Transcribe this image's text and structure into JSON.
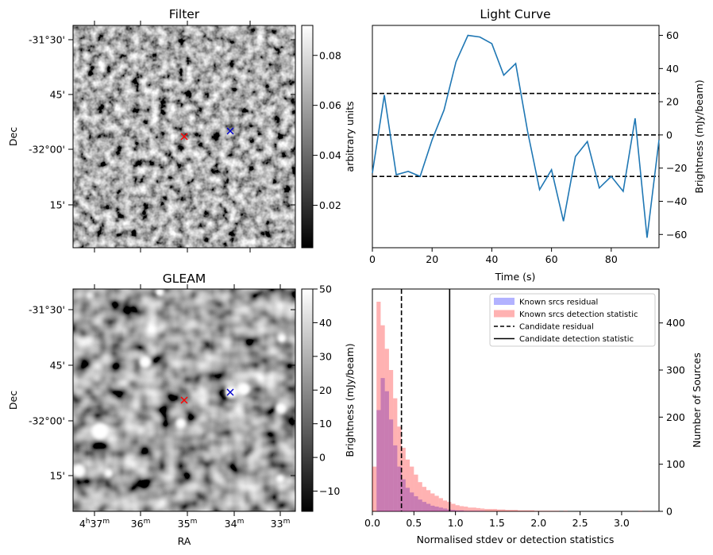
{
  "charts": [
    {
      "type": "heatmap",
      "title": "Filter",
      "ylabel": "Dec",
      "ytick_labels": [
        "-31°30'",
        "45'",
        "-32°00'",
        "15'"
      ],
      "colorbar": {
        "label": "arbitrary units",
        "ticks": [
          "0.08",
          "0.06",
          "0.04",
          "0.02"
        ],
        "range": [
          0.003,
          0.092
        ]
      },
      "markers": [
        {
          "name": "candidate",
          "symbol": "x",
          "color": "#ff0000"
        },
        {
          "name": "other",
          "symbol": "x",
          "color": "#0000cc"
        }
      ]
    },
    {
      "type": "line",
      "title": "Light Curve",
      "xlabel": "Time (s)",
      "ylabel": "Brightness (mJy/beam)",
      "x_ticks": [
        "0",
        "20",
        "40",
        "60",
        "80"
      ],
      "y_ticks": [
        "60",
        "40",
        "20",
        "0",
        "−20",
        "−40",
        "−60"
      ],
      "xlim": [
        0,
        96
      ],
      "ylim": [
        -68,
        66
      ],
      "series_color": "#1f77b4",
      "x": [
        0,
        4,
        8,
        12,
        16,
        20,
        24,
        28,
        32,
        36,
        40,
        44,
        48,
        52,
        56,
        60,
        64,
        68,
        72,
        76,
        80,
        84,
        88,
        92,
        96
      ],
      "y": [
        -23,
        24,
        -24,
        -22,
        -25,
        -3,
        15,
        44,
        60,
        59,
        55,
        36,
        43,
        2,
        -33,
        -21,
        -52,
        -13,
        -4,
        -32,
        -25,
        -34,
        10,
        -62,
        -3
      ],
      "hlines": [
        25,
        0,
        -25
      ]
    },
    {
      "type": "heatmap",
      "title": "GLEAM",
      "ylabel": "Dec",
      "xlabel": "RA",
      "ytick_labels": [
        "-31°30'",
        "45'",
        "-32°00'",
        "15'"
      ],
      "xtick_labels": [
        {
          "h": "4",
          "m": "37"
        },
        {
          "h": "",
          "m": "36"
        },
        {
          "h": "",
          "m": "35"
        },
        {
          "h": "",
          "m": "34"
        },
        {
          "h": "",
          "m": "33"
        }
      ],
      "colorbar": {
        "label": "Brightness (mJy/beam)",
        "ticks": [
          "50",
          "40",
          "30",
          "20",
          "10",
          "0",
          "−10"
        ],
        "range": [
          -16,
          50
        ]
      },
      "markers": [
        {
          "name": "candidate",
          "symbol": "x",
          "color": "#ff0000"
        },
        {
          "name": "other",
          "symbol": "x",
          "color": "#0000cc"
        }
      ]
    },
    {
      "type": "bar",
      "xlabel": "Normalised stdev or detection statistics",
      "ylabel": "Number of Sources",
      "x_ticks": [
        "0.0",
        "0.5",
        "1.0",
        "1.5",
        "2.0",
        "2.5",
        "3.0"
      ],
      "y_ticks": [
        "0",
        "100",
        "200",
        "300",
        "400"
      ],
      "xlim": [
        0,
        3.45
      ],
      "ylim": [
        0,
        472
      ],
      "bin_width": 0.05,
      "legend_position": "top-right",
      "series": [
        {
          "name": "Known srcs residual",
          "color": "#0000ff",
          "alpha": 0.3,
          "counts": [
            0,
            215,
            283,
            255,
            195,
            140,
            95,
            68,
            50,
            40,
            32,
            25,
            20,
            16,
            12,
            10,
            8,
            6,
            4,
            3,
            2,
            2,
            1,
            1,
            1,
            1,
            1,
            0,
            0,
            0,
            0,
            0,
            0,
            0,
            0,
            0,
            0,
            0,
            0,
            0,
            0,
            0,
            0,
            0,
            0,
            0,
            0,
            0,
            0,
            0,
            0,
            0,
            0,
            0,
            0,
            0,
            0,
            0,
            0,
            0,
            0,
            0,
            0,
            0,
            0,
            0,
            0,
            0,
            0
          ]
        },
        {
          "name": "Known srcs detection statistic",
          "color": "#ff0000",
          "alpha": 0.3,
          "counts": [
            95,
            445,
            395,
            345,
            300,
            240,
            180,
            135,
            110,
            95,
            78,
            62,
            52,
            45,
            38,
            33,
            28,
            23,
            20,
            16,
            13,
            11,
            10,
            8,
            8,
            7,
            6,
            5,
            5,
            5,
            4,
            4,
            3,
            3,
            3,
            2,
            2,
            2,
            2,
            1,
            1,
            1,
            1,
            1,
            1,
            0,
            1,
            0,
            0,
            0,
            0,
            0,
            0,
            0,
            0,
            0,
            0,
            0,
            0,
            0,
            0,
            0,
            0,
            0,
            1,
            0,
            0,
            0,
            0
          ]
        }
      ],
      "vlines": [
        {
          "name": "Candidate residual",
          "x": 0.35,
          "style": "dashed"
        },
        {
          "name": "Candidate detection statistic",
          "x": 0.93,
          "style": "solid"
        }
      ]
    }
  ]
}
